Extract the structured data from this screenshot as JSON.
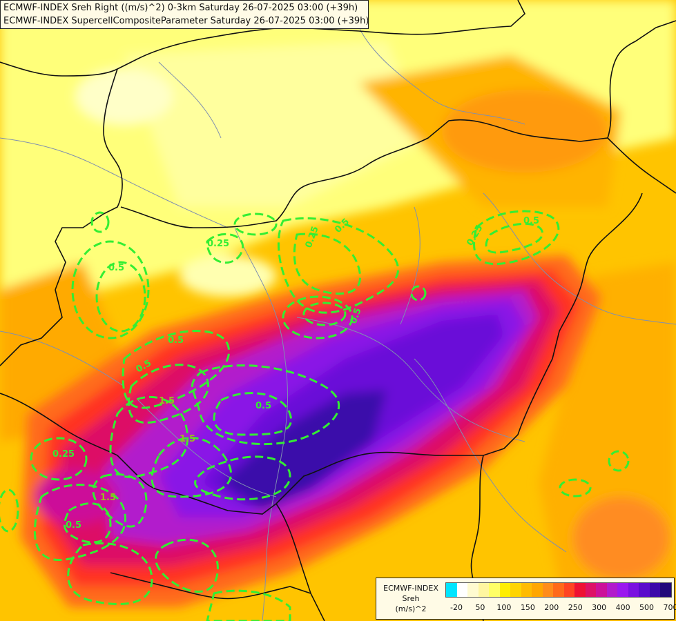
{
  "titles": {
    "line1": "ECMWF-INDEX Sreh Right ((m/s)^2) 0-3km Saturday 26-07-2025 03:00 (+39h)",
    "line2": "ECMWF-INDEX SupercellCompositeParameter Saturday 26-07-2025 03:00 (+39h)"
  },
  "legend": {
    "model": "ECMWF-INDEX",
    "variable": "Sreh",
    "unit": "(m/s)^2",
    "colors": [
      "#00e5ff",
      "#ffffff",
      "#fffbd0",
      "#fff6a0",
      "#ffff66",
      "#ffee00",
      "#ffd400",
      "#ffbb00",
      "#ffa600",
      "#ff8c1a",
      "#ff6a1a",
      "#ff4422",
      "#ee1133",
      "#dd1166",
      "#cc1199",
      "#b21bcc",
      "#9b19ee",
      "#7a12e0",
      "#5a0ccc",
      "#3b08aa",
      "#220a7a"
    ],
    "ticks": [
      "-20",
      "50",
      "100",
      "150",
      "200",
      "250",
      "300",
      "400",
      "500",
      "700"
    ]
  },
  "contour_labels": [
    "0.25",
    "0.5",
    "0.5",
    "0.5",
    "0.25",
    "0.25",
    "0.5",
    "0.5",
    "1.5",
    "1.5",
    "0.5",
    "0.25",
    "0.5",
    "1.5",
    "0.5"
  ],
  "map_colors": {
    "background": "#ffd000",
    "line_green": "#33ee33",
    "border": "#111111",
    "river": "#7f8fb0"
  }
}
